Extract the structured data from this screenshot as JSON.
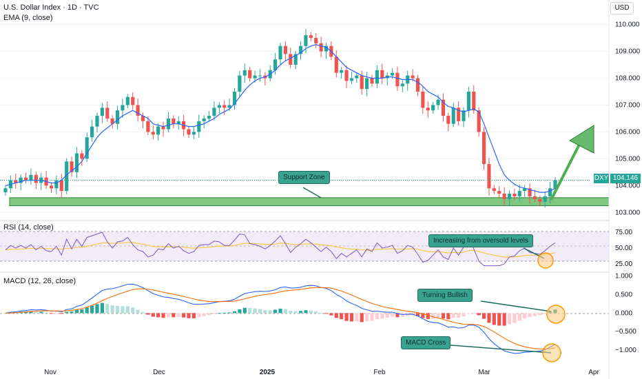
{
  "header": {
    "title": "U.S. Dollar Index · 1D · TVC",
    "indicator": "EMA (9, close)",
    "currency": "USD"
  },
  "price_tag": {
    "symbol": "DXY",
    "value": "104.146"
  },
  "panes": {
    "rsi_label": "RSI (14, close)",
    "macd_label": "MACD (12, 26, close)"
  },
  "annotations": {
    "support": "Support Zone",
    "rsi": "Increasing from oversold levels",
    "bullish": "Turning Bullish",
    "cross": "MACD Cross"
  },
  "colors": {
    "up": "#26a69a",
    "down": "#ef5350",
    "ema": "#2962ff",
    "support": "#81c784",
    "arrow": "#4caf50",
    "macd": "#2962ff",
    "signal": "#ff6d00",
    "rsi": "#7e57c2",
    "rsi_ma": "#f7c948",
    "circle": "#ff9800"
  },
  "chart_data": [
    {
      "type": "candlestick",
      "title": "U.S. Dollar Index · 1D · TVC",
      "x_ticks": [
        "Nov",
        "Dec",
        "2025",
        "Feb",
        "Mar",
        "Apr"
      ],
      "y_ticks": [
        103.0,
        104.0,
        105.0,
        106.0,
        107.0,
        108.0,
        109.0,
        110.0
      ],
      "ylim": [
        102.7,
        110.4
      ],
      "support_zone": [
        103.25,
        103.55
      ],
      "closes": [
        103.9,
        104.2,
        104.1,
        104.3,
        104.2,
        104.4,
        104.1,
        104.3,
        104.0,
        103.9,
        104.2,
        103.8,
        104.9,
        104.5,
        105.2,
        105.0,
        105.8,
        106.2,
        106.6,
        106.9,
        106.5,
        106.3,
        106.8,
        107.0,
        107.3,
        107.0,
        106.6,
        106.4,
        106.0,
        105.9,
        106.2,
        106.1,
        106.5,
        106.3,
        106.4,
        106.1,
        105.9,
        106.0,
        106.4,
        106.5,
        106.6,
        106.9,
        107.0,
        106.9,
        107.0,
        107.5,
        108.1,
        108.3,
        108.0,
        108.1,
        108.1,
        108.0,
        108.3,
        108.7,
        109.2,
        108.9,
        108.5,
        108.9,
        109.2,
        109.6,
        109.5,
        109.3,
        109.0,
        109.2,
        108.8,
        108.2,
        108.3,
        107.9,
        108.0,
        108.1,
        107.6,
        108.0,
        107.8,
        108.3,
        108.0,
        108.1,
        108.2,
        107.7,
        107.8,
        108.1,
        108.0,
        107.5,
        106.9,
        106.8,
        107.0,
        107.2,
        106.6,
        106.3,
        106.9,
        106.4,
        106.8,
        107.5,
        106.8,
        106.0,
        104.8,
        103.9,
        103.8,
        103.7,
        103.5,
        103.7,
        103.6,
        103.8,
        103.9,
        103.6,
        103.5,
        103.4,
        103.6,
        103.9,
        104.2
      ],
      "ema_9": [
        104.0,
        104.05,
        104.1,
        104.15,
        104.2,
        104.2,
        104.2,
        104.2,
        104.15,
        104.1,
        104.1,
        104.2,
        104.4,
        104.55,
        104.7,
        104.9,
        105.2,
        105.5,
        105.8,
        106.0,
        106.15,
        106.3,
        106.45,
        106.6,
        106.7,
        106.8,
        106.7,
        106.6,
        106.5,
        106.3,
        106.25,
        106.2,
        106.25,
        106.3,
        106.3,
        106.25,
        106.2,
        106.2,
        106.25,
        106.3,
        106.4,
        106.5,
        106.65,
        106.75,
        106.85,
        107.05,
        107.3,
        107.55,
        107.75,
        107.9,
        108.0,
        108.05,
        108.15,
        108.3,
        108.5,
        108.65,
        108.75,
        108.85,
        108.95,
        109.1,
        109.2,
        109.25,
        109.2,
        109.15,
        109.0,
        108.8,
        108.6,
        108.4,
        108.3,
        108.2,
        108.1,
        108.05,
        108.0,
        108.0,
        108.0,
        108.05,
        108.05,
        108.0,
        107.95,
        107.95,
        107.95,
        107.85,
        107.7,
        107.5,
        107.4,
        107.3,
        107.1,
        106.95,
        106.9,
        106.8,
        106.75,
        106.8,
        106.85,
        106.75,
        106.3,
        105.8,
        105.3,
        104.8,
        104.4,
        104.2,
        104.05,
        103.95,
        103.9,
        103.85,
        103.8,
        103.75,
        103.75,
        103.8,
        103.9
      ]
    },
    {
      "type": "line",
      "title": "RSI (14, close)",
      "y_ticks": [
        25.0,
        50.0,
        75.0
      ],
      "ylim": [
        15,
        85
      ],
      "bands": [
        30,
        70
      ]
    },
    {
      "type": "line",
      "title": "MACD (12, 26, close)",
      "y_ticks": [
        -1.0,
        -0.5,
        0.0,
        0.5,
        1.0
      ],
      "ylim": [
        -1.15,
        1.05
      ]
    }
  ]
}
